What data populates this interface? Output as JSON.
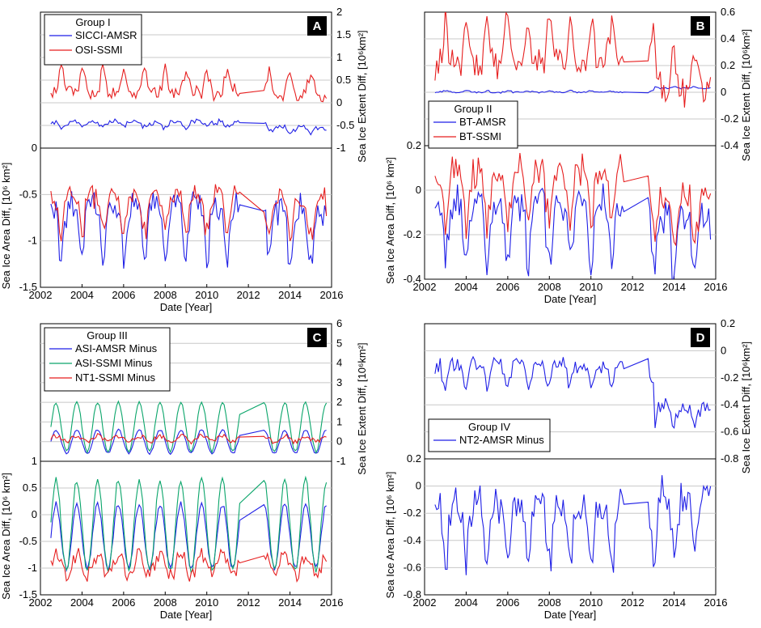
{
  "colors": {
    "blue": "#1f1fe6",
    "red": "#e61f1f",
    "green": "#0aa56a",
    "grid": "#c8c8c8",
    "badge": "#000000"
  },
  "chart_data": [
    {
      "type": "line",
      "panel": "A",
      "legend_title": "Group I",
      "xlabel": "Date [Year]",
      "ylabel_left": "Sea Ice Area Diff, [10^6 km2]",
      "ylabel_right": "Sea Ice Extent Diff, [10^6km2]",
      "x_ticks": [
        "2002",
        "2004",
        "2006",
        "2008",
        "2010",
        "2012",
        "2014",
        "2016"
      ],
      "left_ticks": [
        "0",
        "-0.5",
        "-1",
        "-1.5"
      ],
      "right_ticks": [
        "2",
        "1.5",
        "1",
        "0.5",
        "0",
        "-0.5",
        "-1"
      ],
      "left_range": [
        -1.5,
        0
      ],
      "right_range": [
        -1,
        2
      ],
      "series": [
        {
          "name": "SICCI-AMSR",
          "axis": "right",
          "color": "blue",
          "legend": true,
          "gen": {
            "base": -0.42,
            "amp": -0.14,
            "noise": 0.05,
            "trend_after_2013": -0.12,
            "seed": 11
          }
        },
        {
          "name": "OSI-SSMI",
          "axis": "right",
          "color": "red",
          "legend": true,
          "gen": {
            "base": 0.22,
            "amp": 0.5,
            "noise": 0.08,
            "trend_after_2013": -0.08,
            "seed": 12
          }
        },
        {
          "name": "SICCI-AMSR",
          "axis": "left",
          "color": "blue",
          "legend": false,
          "gen": {
            "base": -0.62,
            "amp": -0.55,
            "noise": 0.05,
            "trend_after_2013": -0.05,
            "seed": 13
          }
        },
        {
          "name": "OSI-SSMI",
          "axis": "left",
          "color": "red",
          "legend": false,
          "gen": {
            "base": -0.5,
            "amp": -0.42,
            "noise": 0.05,
            "trend_after_2013": -0.05,
            "seed": 14
          }
        }
      ]
    },
    {
      "type": "line",
      "panel": "B",
      "legend_title": "Group II",
      "xlabel": "Date [Year]",
      "ylabel_left": "Sea Ice Area Diff, [10^6 km2]",
      "ylabel_right": "Sea Ice Extent Diff, [10^6km2]",
      "x_ticks": [
        "2002",
        "2004",
        "2006",
        "2008",
        "2010",
        "2012",
        "2014",
        "2016"
      ],
      "left_ticks": [
        "0.2",
        "0",
        "-0.2",
        "-0.4"
      ],
      "right_ticks": [
        "0.6",
        "0.4",
        "0.2",
        "0",
        "-0.2",
        "-0.4"
      ],
      "left_range": [
        -0.4,
        0.2
      ],
      "right_range": [
        -0.4,
        0.6
      ],
      "series": [
        {
          "name": "BT-AMSR",
          "axis": "right",
          "color": "blue",
          "legend": true,
          "gen": {
            "base": 0.0,
            "amp": 0.01,
            "noise": 0.005,
            "trend_after_2013": 0.03,
            "seed": 21
          }
        },
        {
          "name": "BT-SSMI",
          "axis": "right",
          "color": "red",
          "legend": true,
          "gen": {
            "base": 0.22,
            "amp": 0.3,
            "noise": 0.08,
            "trend_after_2013": -0.2,
            "seed": 22
          }
        },
        {
          "name": "BT-AMSR",
          "axis": "left",
          "color": "blue",
          "legend": false,
          "gen": {
            "base": -0.05,
            "amp": -0.27,
            "noise": 0.04,
            "trend_after_2013": -0.07,
            "seed": 23
          }
        },
        {
          "name": "BT-SSMI",
          "axis": "left",
          "color": "red",
          "legend": false,
          "gen": {
            "base": 0.08,
            "amp": -0.22,
            "noise": 0.05,
            "trend_after_2013": -0.1,
            "seed": 24
          }
        }
      ]
    },
    {
      "type": "line",
      "panel": "C",
      "legend_title": "Group III",
      "xlabel": "Date [Year]",
      "ylabel_left": "Sea Ice Area Diff, [10^6 km2]",
      "ylabel_right": "Sea Ice Extent Diff, [10^6km2]",
      "x_ticks": [
        "2002",
        "2004",
        "2006",
        "2008",
        "2010",
        "2012",
        "2014",
        "2016"
      ],
      "left_ticks": [
        "1",
        "0.5",
        "0",
        "-0.5",
        "-1",
        "-1.5"
      ],
      "right_ticks": [
        "6",
        "5",
        "4",
        "3",
        "2",
        "1",
        "0",
        "-1"
      ],
      "left_range": [
        -1.5,
        1
      ],
      "right_range": [
        -1,
        6
      ],
      "series": [
        {
          "name": "ASI-AMSR Minus",
          "axis": "right",
          "color": "blue",
          "legend": true,
          "gen": {
            "base": 0.0,
            "amp": 0.6,
            "noise": 0.05,
            "trend_after_2013": 0.0,
            "seed": 31,
            "sine": true
          }
        },
        {
          "name": "ASI-SSMI Minus",
          "axis": "right",
          "color": "green",
          "legend": true,
          "gen": {
            "base": 0.75,
            "amp": 1.25,
            "noise": 0.06,
            "trend_after_2013": 0.0,
            "seed": 32,
            "sine": true
          }
        },
        {
          "name": "NT1-SSMI Minus",
          "axis": "right",
          "color": "red",
          "legend": true,
          "gen": {
            "base": 0.15,
            "amp": 0.15,
            "noise": 0.12,
            "trend_after_2013": 0.0,
            "seed": 33,
            "sine": true
          }
        },
        {
          "name": "ASI-AMSR Minus",
          "axis": "left",
          "color": "blue",
          "legend": false,
          "gen": {
            "base": -0.4,
            "amp": 0.6,
            "noise": 0.05,
            "trend_after_2013": 0.0,
            "seed": 34,
            "sine": true
          }
        },
        {
          "name": "ASI-SSMI Minus",
          "axis": "left",
          "color": "green",
          "legend": false,
          "gen": {
            "base": -0.2,
            "amp": 0.85,
            "noise": 0.06,
            "trend_after_2013": 0.0,
            "seed": 35,
            "sine": true
          }
        },
        {
          "name": "NT1-SSMI Minus",
          "axis": "left",
          "color": "red",
          "legend": false,
          "gen": {
            "base": -0.95,
            "amp": 0.2,
            "noise": 0.15,
            "trend_after_2013": 0.0,
            "seed": 36,
            "sine": true
          }
        }
      ]
    },
    {
      "type": "line",
      "panel": "D",
      "legend_title": "Group IV",
      "xlabel": "Date [Year]",
      "ylabel_left": "Sea Ice Area Diff, [10^6 km2]",
      "ylabel_right": "Sea Ice Extent Diff, [10^6km2]",
      "x_ticks": [
        "2002",
        "2004",
        "2006",
        "2008",
        "2010",
        "2012",
        "2014",
        "2016"
      ],
      "left_ticks": [
        "0.2",
        "0",
        "-0.2",
        "-0.4",
        "-0.6",
        "-0.8"
      ],
      "right_ticks": [
        "0.2",
        "0",
        "-0.2",
        "-0.4",
        "-0.6",
        "-0.8"
      ],
      "left_range": [
        -0.8,
        0.2
      ],
      "right_range": [
        -0.8,
        0.2
      ],
      "series": [
        {
          "name": "NT2-AMSR Minus",
          "axis": "right",
          "color": "blue",
          "legend": true,
          "gen": {
            "base": -0.1,
            "amp": -0.15,
            "noise": 0.05,
            "trend_after_2013": -0.3,
            "seed": 41
          }
        },
        {
          "name": "NT2-AMSR Minus",
          "axis": "left",
          "color": "blue",
          "legend": false,
          "gen": {
            "base": -0.12,
            "amp": -0.45,
            "noise": 0.06,
            "trend_after_2013": 0.05,
            "seed": 42
          }
        }
      ]
    }
  ]
}
